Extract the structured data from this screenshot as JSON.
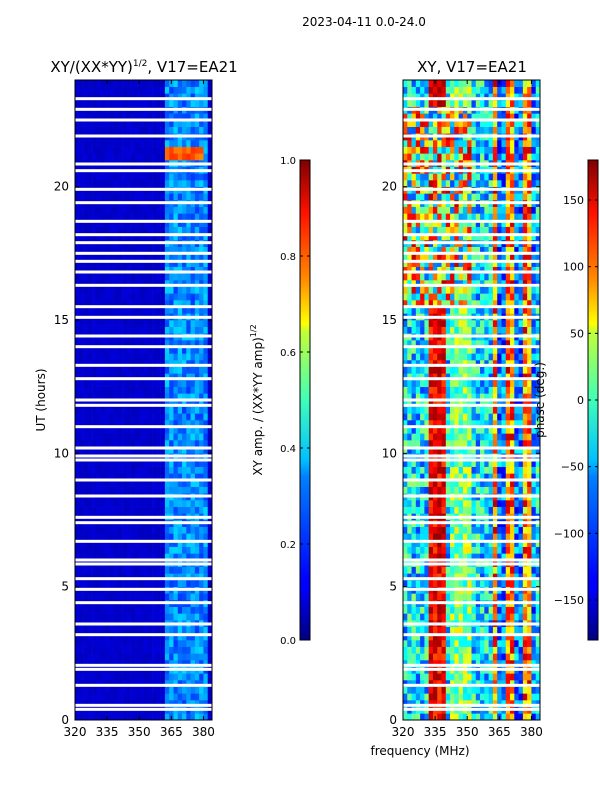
{
  "figure_title": "2023-04-11 0.0-24.0",
  "shared_xlabel": "frequency (MHz)",
  "chart_data": [
    {
      "type": "heatmap",
      "title_main": "XY/(XX*YY)",
      "title_sup": "1/2",
      "title_tail": ", V17=EA21",
      "xlabel": "",
      "ylabel": "UT (hours)",
      "xlim": [
        320,
        384
      ],
      "ylim": [
        0,
        24
      ],
      "xticks": [
        320,
        335,
        350,
        365,
        380
      ],
      "yticks": [
        0,
        5,
        10,
        15,
        20
      ],
      "colormap": "jet",
      "colorbar": {
        "label_main": "XY amp. / (XX*YY amp)",
        "label_sup": "1/2",
        "range": [
          0.0,
          1.0
        ],
        "ticks": [
          "0.0",
          "0.2",
          "0.4",
          "0.6",
          "0.8",
          "1.0"
        ],
        "tick_values": [
          0.0,
          0.2,
          0.4,
          0.6,
          0.8,
          1.0
        ]
      },
      "description": "Mostly low amplitude (~0.05) across band; brighter bands near 363-382 MHz (~0.2-0.3); strong amplitude (~0.8) around 363-380 MHz at 21-21.5 h.",
      "flagged_hours": [
        0.4,
        0.55,
        1.3,
        1.9,
        2.05,
        3.2,
        3.6,
        4.4,
        4.9,
        5.3,
        5.85,
        6.0,
        6.7,
        7.4,
        7.6,
        8.4,
        9.0,
        9.75,
        9.9,
        10.2,
        11.0,
        11.8,
        12.0,
        12.8,
        13.3,
        14.0,
        14.4,
        15.1,
        15.5,
        16.3,
        16.8,
        17.2,
        17.5,
        17.9,
        18.2,
        18.7,
        19.4,
        19.9,
        20.6,
        20.85,
        21.9,
        22.5,
        22.9,
        23.3
      ],
      "series_rows": [
        {
          "t0": 0.0,
          "t1": 24.0,
          "base": 0.05
        },
        {
          "t0": 21.0,
          "t1": 21.6,
          "base": 0.8,
          "f0": 363,
          "f1": 381
        }
      ]
    },
    {
      "type": "heatmap",
      "title_main": "XY, V17=EA21",
      "xlabel": "",
      "ylabel": "",
      "xlim": [
        320,
        384
      ],
      "ylim": [
        0,
        24
      ],
      "xticks": [
        320,
        335,
        350,
        365,
        380
      ],
      "yticks": [
        0,
        5,
        10,
        15,
        20
      ],
      "colormap": "jet",
      "colorbar": {
        "label_main": "phase (deg.)",
        "range": [
          -180,
          180
        ],
        "ticks": [
          "150",
          "100",
          "50",
          "0",
          "−50",
          "−100",
          "−150"
        ],
        "tick_values": [
          150,
          100,
          50,
          0,
          -50,
          -100,
          -150
        ]
      },
      "description": "Phase ~ -120 deg baseline with strong positive phase band (~150) near 333-340 MHz; structured phase stripes 363-382 MHz.",
      "flagged_hours": [
        0.4,
        0.55,
        1.3,
        1.9,
        2.05,
        3.2,
        3.6,
        4.4,
        4.9,
        5.3,
        5.85,
        6.0,
        6.7,
        7.4,
        7.6,
        8.4,
        9.0,
        9.75,
        9.9,
        10.2,
        11.0,
        11.8,
        12.0,
        12.8,
        13.3,
        14.0,
        14.4,
        15.1,
        15.5,
        16.3,
        16.8,
        17.2,
        17.5,
        17.9,
        18.2,
        18.7,
        19.4,
        19.9,
        20.6,
        20.85,
        21.9,
        22.5,
        22.9,
        23.3
      ]
    }
  ]
}
